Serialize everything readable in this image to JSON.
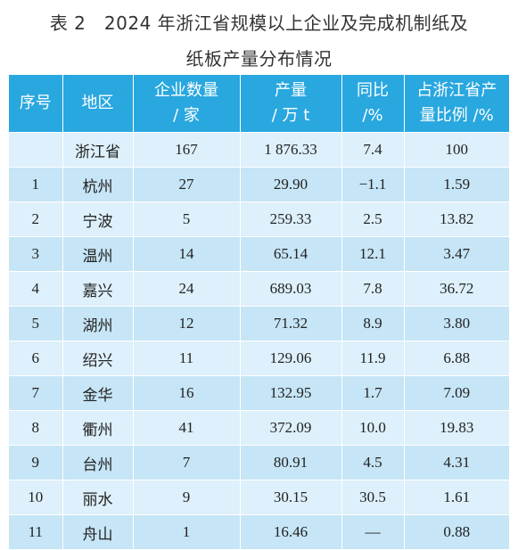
{
  "title": {
    "line1": "表 2　2024 年浙江省规模以上企业及完成机制纸及",
    "line2": "纸板产量分布情况"
  },
  "headers": [
    [
      "序号"
    ],
    [
      "地区"
    ],
    [
      "企业数量",
      "/ 家"
    ],
    [
      "产量",
      "/ 万 t"
    ],
    [
      "同比",
      "/%"
    ],
    [
      "占浙江省产",
      "量比例 /%"
    ]
  ],
  "rows": [
    [
      "",
      "浙江省",
      "167",
      "1 876.33",
      "7.4",
      "100"
    ],
    [
      "1",
      "杭州",
      "27",
      "29.90",
      "−1.1",
      "1.59"
    ],
    [
      "2",
      "宁波",
      "5",
      "259.33",
      "2.5",
      "13.82"
    ],
    [
      "3",
      "温州",
      "14",
      "65.14",
      "12.1",
      "3.47"
    ],
    [
      "4",
      "嘉兴",
      "24",
      "689.03",
      "7.8",
      "36.72"
    ],
    [
      "5",
      "湖州",
      "12",
      "71.32",
      "8.9",
      "3.80"
    ],
    [
      "6",
      "绍兴",
      "11",
      "129.06",
      "11.9",
      "6.88"
    ],
    [
      "7",
      "金华",
      "16",
      "132.95",
      "1.7",
      "7.09"
    ],
    [
      "8",
      "衢州",
      "41",
      "372.09",
      "10.0",
      "19.83"
    ],
    [
      "9",
      "台州",
      "7",
      "80.91",
      "4.5",
      "4.31"
    ],
    [
      "10",
      "丽水",
      "9",
      "30.15",
      "30.5",
      "1.61"
    ],
    [
      "11",
      "舟山",
      "1",
      "16.46",
      "—",
      "0.88"
    ]
  ],
  "colors": {
    "header_bg": "#29a7df",
    "row_light": "#ddf0fb",
    "row_dark": "#c6e5f6"
  }
}
